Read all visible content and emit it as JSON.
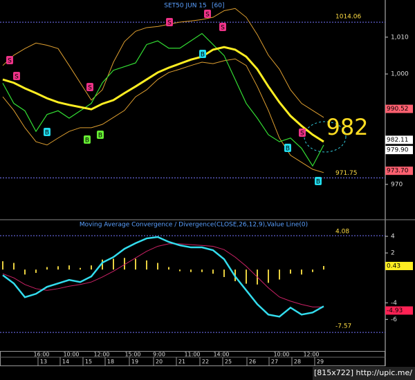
{
  "chart_data": [
    {
      "type": "line",
      "title": "SET50 JUN 15",
      "subtitle": "[60]",
      "ylim": [
        960.4,
        1020.1
      ],
      "yticks": [
        970,
        {
          "value": 1000,
          "label": "1,000"
        },
        {
          "value": 1010,
          "label": "1,010"
        }
      ],
      "series": [
        {
          "color": "#e0a030",
          "values": [
            1002.3,
            1005.1,
            1006.9,
            1008.4,
            1007.8,
            1006.9,
            1002.3,
            997.6,
            992.9,
            995.7,
            1003.2,
            1008.8,
            1011.6,
            1012.6,
            1012.9,
            1013.5,
            1014.1,
            1014.4,
            1014.8,
            1015.4,
            1017.2,
            1017.8,
            1015.4,
            1010.7,
            1005.1,
            1001.3,
            995.7,
            992.0,
            990.1,
            988.2
          ]
        },
        {
          "color": "#e0a030",
          "values": [
            993.8,
            990.1,
            985.4,
            981.6,
            980.7,
            982.6,
            984.4,
            985.4,
            985.4,
            986.3,
            988.2,
            990.1,
            993.8,
            995.7,
            998.5,
            1000.4,
            1001.3,
            1002.3,
            1003.2,
            1002.8,
            1003.6,
            1004.1,
            1002.3,
            996.6,
            990.1,
            982.6,
            977.9,
            976.0,
            974.1,
            973.2
          ]
        },
        {
          "color": "#33dd33",
          "values": [
            997.5,
            992.0,
            990.0,
            984.4,
            989.0,
            990.0,
            988.0,
            990.0,
            992.0,
            997.6,
            1001.0,
            1002.0,
            1003.0,
            1008.0,
            1009.0,
            1007.0,
            1007.0,
            1009.0,
            1011.0,
            1008.0,
            1005.0,
            998.5,
            992.0,
            988.0,
            983.5,
            981.6,
            982.6,
            979.8,
            975.0,
            980.7
          ]
        },
        {
          "color": "#ffee22",
          "values": [
            998.5,
            997.6,
            996.1,
            994.8,
            993.4,
            992.3,
            991.6,
            991.0,
            990.4,
            991.9,
            992.9,
            994.8,
            996.6,
            998.5,
            1000.4,
            1001.7,
            1002.8,
            1003.9,
            1004.7,
            1006.6,
            1007.3,
            1006.6,
            1004.7,
            1001.3,
            996.6,
            992.3,
            988.6,
            985.9,
            983.5,
            981.6
          ]
        }
      ],
      "levels": [
        1014.06,
        971.75
      ],
      "price_tags": [
        990.52,
        982.11,
        {
          "value": 979.9,
          "label": "979.90"
        },
        {
          "value": 973.7,
          "label": "973.70"
        }
      ],
      "annotation": "982",
      "signals": [
        "S",
        "S",
        "S",
        "S",
        "S",
        "S",
        "S",
        "B",
        "B",
        "B",
        "B",
        "B",
        "B"
      ]
    },
    {
      "type": "line",
      "title": "Moving Average Convergence / Divergence(CLOSE,26,12,9),Value Line(0)",
      "ylim": [
        -9.8,
        6
      ],
      "yticks": [
        4,
        2,
        -4,
        -6
      ],
      "series": [
        {
          "color": "#cc2266",
          "values": [
            -0.5,
            -1.0,
            -1.8,
            -2.3,
            -2.5,
            -2.3,
            -2.0,
            -1.8,
            -1.5,
            -0.9,
            -0.2,
            0.6,
            1.4,
            2.2,
            2.8,
            3.1,
            3.1,
            3.0,
            2.9,
            2.8,
            2.4,
            1.5,
            0.4,
            -0.9,
            -2.2,
            -3.3,
            -3.8,
            -4.2,
            -4.5,
            -4.5
          ]
        },
        {
          "color": "#33ddee",
          "values": [
            -0.67,
            -1.67,
            -3.33,
            -2.92,
            -2.08,
            -1.67,
            -1.25,
            -1.5,
            -0.83,
            0.83,
            1.5,
            2.5,
            3.17,
            3.75,
            3.92,
            3.33,
            2.92,
            2.67,
            2.67,
            2.33,
            1.25,
            -0.83,
            -2.5,
            -4.17,
            -5.42,
            -5.67,
            -4.58,
            -5.42,
            -5.17,
            -4.42
          ]
        }
      ],
      "histogram": {
        "color": "#e8d040",
        "values": [
          1.0,
          0.8,
          -0.6,
          -0.4,
          0.3,
          0.4,
          0.5,
          0.2,
          0.5,
          1.2,
          1.3,
          1.4,
          1.3,
          1.1,
          0.8,
          0.3,
          -0.2,
          -0.3,
          -0.3,
          -0.5,
          -0.9,
          -1.4,
          -1.7,
          -1.8,
          -1.6,
          -1.2,
          -0.5,
          -0.6,
          -0.3,
          0.43
        ]
      },
      "levels": [
        4.08,
        -7.57
      ],
      "price_tags": [
        0.43,
        -4.93
      ],
      "time_labels": [
        "16:00",
        "10:00",
        "12:00",
        "15:00",
        "9:00",
        "11:00",
        "14:00",
        "10:00",
        "12:00"
      ],
      "date_labels": [
        "13",
        "14",
        "15",
        "18",
        "19",
        "20",
        "21",
        "22",
        "25",
        "26",
        "27",
        "28",
        "29"
      ]
    }
  ],
  "footer": "[815x722] http://upic.me/"
}
